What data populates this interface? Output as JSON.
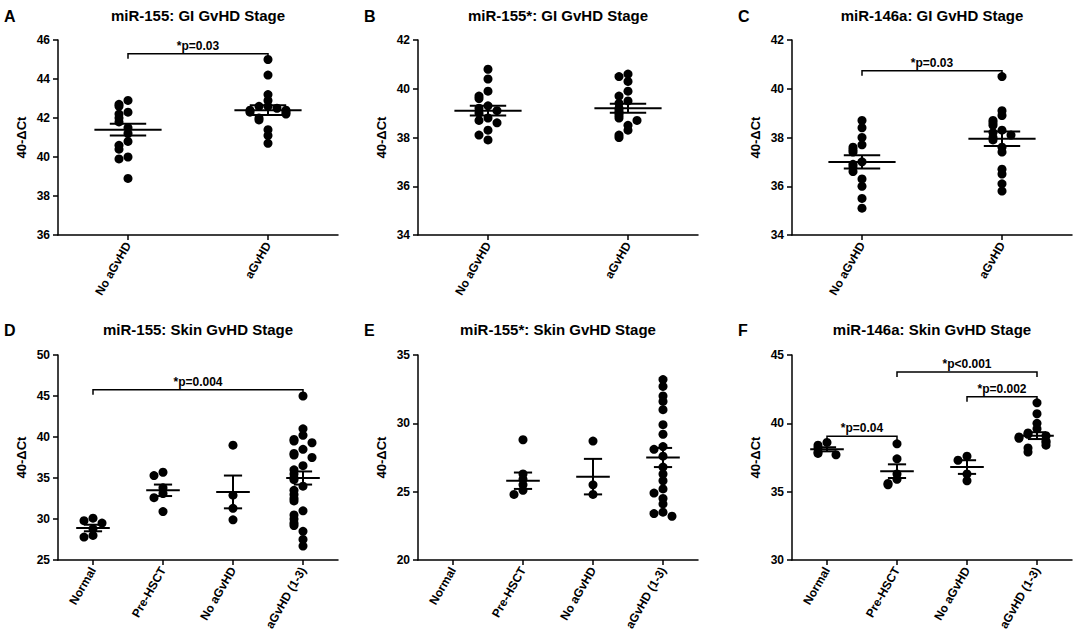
{
  "chart_data": [
    {
      "panel": "A",
      "type": "scatter",
      "title": "miR-155: GI GvHD Stage",
      "y_label": "40-ΔCt",
      "color": "#000000",
      "categories": [
        "No aGvHD",
        "aGvHD"
      ],
      "values": [
        [
          42.9,
          42.7,
          42.6,
          42.3,
          42.2,
          42.0,
          41.8,
          41.5,
          41.2,
          40.8,
          40.6,
          40.4,
          40.0,
          39.9,
          38.9
        ],
        [
          45.0,
          44.2,
          43.2,
          42.9,
          42.6,
          42.6,
          42.5,
          42.4,
          42.4,
          42.3,
          42.3,
          42.2,
          42.0,
          41.9,
          41.4,
          41.1,
          40.7
        ]
      ],
      "means": [
        41.4,
        42.4
      ],
      "sem": [
        0.3,
        0.25
      ],
      "ylim": [
        36,
        46
      ],
      "yticks": [
        36,
        38,
        40,
        42,
        44,
        46
      ],
      "annotations": [
        {
          "from": "No aGvHD",
          "to": "aGvHD",
          "text": "*p=0.03"
        }
      ]
    },
    {
      "panel": "B",
      "type": "scatter",
      "title": "miR-155*: GI GvHD Stage",
      "y_label": "40-ΔCt",
      "color": "#000000",
      "categories": [
        "No aGvHD",
        "aGvHD"
      ],
      "values": [
        [
          40.8,
          40.4,
          39.9,
          39.7,
          39.6,
          39.3,
          39.2,
          39.1,
          39.0,
          38.8,
          38.7,
          38.6,
          38.3,
          38.1,
          37.9
        ],
        [
          40.6,
          40.5,
          40.3,
          39.9,
          39.7,
          39.5,
          39.4,
          39.2,
          39.1,
          39.0,
          38.9,
          38.8,
          38.7,
          38.5,
          38.3,
          38.1,
          38.0
        ]
      ],
      "means": [
        39.1,
        39.2
      ],
      "sem": [
        0.2,
        0.18
      ],
      "ylim": [
        34,
        42
      ],
      "yticks": [
        34,
        36,
        38,
        40,
        42
      ],
      "annotations": []
    },
    {
      "panel": "C",
      "type": "scatter",
      "title": "miR-146a: GI GvHD Stage",
      "y_label": "40-ΔCt",
      "color": "#000000",
      "categories": [
        "No aGvHD",
        "aGvHD"
      ],
      "values": [
        [
          38.7,
          38.4,
          38.0,
          37.7,
          37.6,
          37.5,
          37.4,
          37.0,
          36.9,
          36.8,
          36.6,
          36.3,
          36.0,
          35.5,
          35.1
        ],
        [
          40.5,
          39.1,
          38.9,
          38.7,
          38.6,
          38.5,
          38.3,
          38.2,
          38.1,
          38.0,
          37.9,
          37.6,
          37.4,
          36.7,
          36.5,
          36.1,
          35.8
        ]
      ],
      "means": [
        37.0,
        37.95
      ],
      "sem": [
        0.27,
        0.3
      ],
      "ylim": [
        34,
        42
      ],
      "yticks": [
        34,
        36,
        38,
        40,
        42
      ],
      "annotations": [
        {
          "from": "No aGvHD",
          "to": "aGvHD",
          "text": "*p=0.03"
        }
      ]
    },
    {
      "panel": "D",
      "type": "scatter",
      "title": "miR-155: Skin GvHD Stage",
      "y_label": "40-ΔCt",
      "color": "#000000",
      "categories": [
        "Normal",
        "Pre-HSCT",
        "No aGvHD",
        "aGvHD (1-3)"
      ],
      "values": [
        [
          30.1,
          29.8,
          29.5,
          28.8,
          28.0,
          27.8
        ],
        [
          35.7,
          35.3,
          33.8,
          33.1,
          32.6,
          30.9
        ],
        [
          39.0,
          32.9,
          31.3,
          29.9
        ],
        [
          45.0,
          41.0,
          40.2,
          39.7,
          39.5,
          39.3,
          38.5,
          38.0,
          37.8,
          37.5,
          36.5,
          36.0,
          35.5,
          35.0,
          34.8,
          34.0,
          33.5,
          33.0,
          32.5,
          32.2,
          31.0,
          30.5,
          30.0,
          29.5,
          29.2,
          28.5,
          27.5,
          26.7
        ]
      ],
      "means": [
        28.9,
        33.5,
        33.3,
        35.0
      ],
      "sem": [
        0.4,
        0.7,
        2.0,
        0.8
      ],
      "ylim": [
        25,
        50
      ],
      "yticks": [
        25,
        30,
        35,
        40,
        45,
        50
      ],
      "annotations": [
        {
          "from": "Normal",
          "to": "aGvHD (1-3)",
          "text": "*p=0.004"
        }
      ]
    },
    {
      "panel": "E",
      "type": "scatter",
      "title": "miR-155*: Skin GvHD Stage",
      "y_label": "40-ΔCt",
      "color": "#000000",
      "categories": [
        "Normal",
        "Pre-HSCT",
        "No aGvHD",
        "aGvHD (1-3)"
      ],
      "values": [
        [],
        [
          28.8,
          26.3,
          25.9,
          25.5,
          25.1,
          24.8
        ],
        [
          28.7,
          25.5,
          24.8
        ],
        [
          33.2,
          32.7,
          32.0,
          31.6,
          31.0,
          29.9,
          29.2,
          28.3,
          28.1,
          27.6,
          26.8,
          26.3,
          25.8,
          25.2,
          24.9,
          24.5,
          24.1,
          23.5,
          23.4,
          23.2
        ]
      ],
      "means": [
        null,
        25.8,
        26.1,
        27.5
      ],
      "sem": [
        null,
        0.6,
        1.3,
        0.7
      ],
      "ylim": [
        20,
        35
      ],
      "yticks": [
        20,
        25,
        30,
        35
      ],
      "annotations": []
    },
    {
      "panel": "F",
      "type": "scatter",
      "title": "miR-146a: Skin GvHD Stage",
      "y_label": "40-ΔCt",
      "color": "#000000",
      "categories": [
        "Normal",
        "Pre-HSCT",
        "No aGvHD",
        "aGvHD (1-3)"
      ],
      "values": [
        [
          38.6,
          38.4,
          38.2,
          37.9,
          37.8,
          37.7
        ],
        [
          38.5,
          37.4,
          36.3,
          35.9,
          35.6,
          35.5
        ],
        [
          37.6,
          37.3,
          36.3,
          35.8
        ],
        [
          41.5,
          40.7,
          40.0,
          39.6,
          39.3,
          39.2,
          39.1,
          39.0,
          38.9,
          38.7,
          38.6,
          38.4,
          38.2,
          37.9
        ]
      ],
      "means": [
        38.1,
        36.5,
        36.8,
        39.1
      ],
      "sem": [
        0.15,
        0.5,
        0.5,
        0.25
      ],
      "ylim": [
        30,
        45
      ],
      "yticks": [
        30,
        35,
        40,
        45
      ],
      "annotations": [
        {
          "from": "Normal",
          "to": "Pre-HSCT",
          "text": "*p=0.04"
        },
        {
          "from": "No aGvHD",
          "to": "aGvHD (1-3)",
          "text": "*p=0.002"
        },
        {
          "from": "Pre-HSCT",
          "to": "aGvHD (1-3)",
          "text": "*p<0.001"
        }
      ]
    }
  ]
}
